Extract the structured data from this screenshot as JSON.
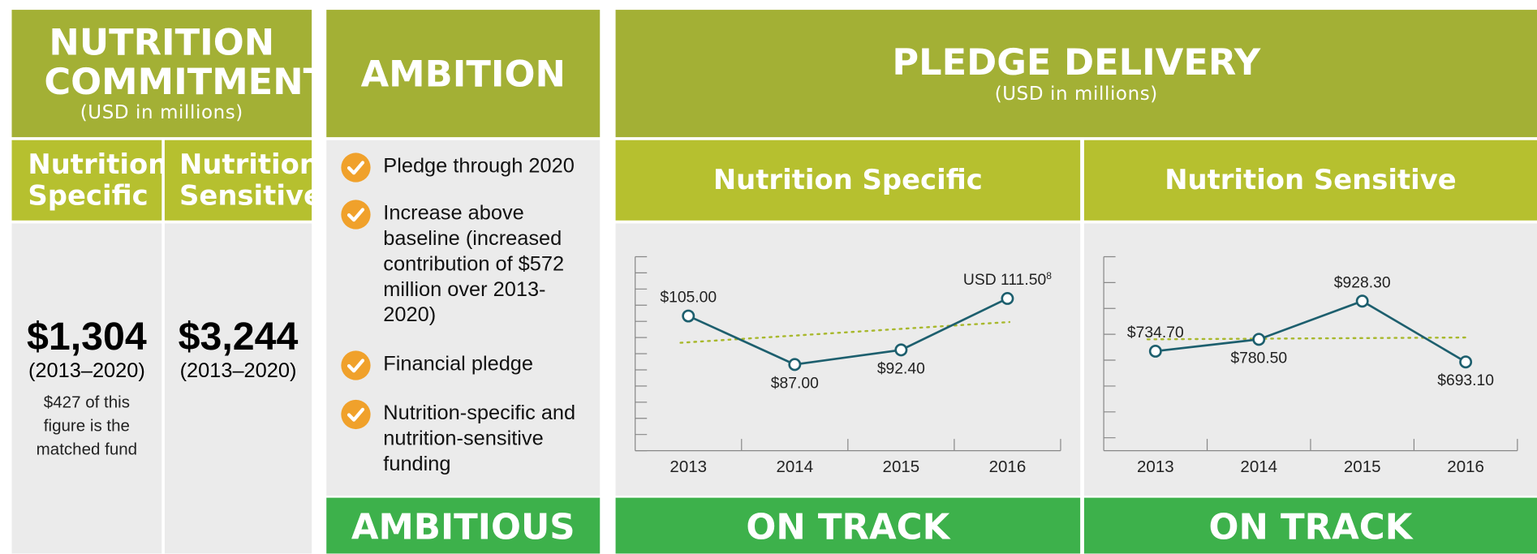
{
  "commitment": {
    "title": "NUTRITION COMMITMENT",
    "subtitle": "(USD in millions)",
    "columns": [
      {
        "heading": "Nutrition Specific",
        "amount": "$1,304",
        "period": "(2013–2020)",
        "note": "$427 of this figure is the matched fund"
      },
      {
        "heading": "Nutrition Sensitive",
        "amount": "$3,244",
        "period": "(2013–2020)"
      }
    ]
  },
  "ambition": {
    "title": "AMBITION",
    "items": [
      "Pledge through 2020",
      "Increase above baseline (increased contribution of $572 million over 2013-2020)",
      "Financial pledge",
      "Nutrition-specific and nutrition-sensitive funding"
    ],
    "status": "AMBITIOUS"
  },
  "delivery": {
    "title": "PLEDGE DELIVERY",
    "subtitle": "(USD in millions)"
  },
  "chart_data": [
    {
      "type": "line",
      "title": "Nutrition Specific",
      "categories": [
        "2013",
        "2014",
        "2015",
        "2016"
      ],
      "values": [
        105,
        87,
        92.4,
        111.5
      ],
      "value_labels": [
        "$105.00",
        "$87.00",
        "$92.40",
        "USD 111.50"
      ],
      "footnote": "8",
      "color": "#1d5f6e",
      "trendline": true,
      "trend_color": "#a8b82c",
      "ylim": [
        55,
        127
      ],
      "yticks": [
        55,
        61,
        67,
        73,
        79,
        85,
        91,
        97,
        103,
        109,
        115,
        121,
        127
      ],
      "status": "ON TRACK"
    },
    {
      "type": "line",
      "title": "Nutrition Sensitive",
      "categories": [
        "2013",
        "2014",
        "2015",
        "2016"
      ],
      "values": [
        734.7,
        780.5,
        928.3,
        693.1
      ],
      "value_labels": [
        "$734.70",
        "$780.50",
        "$928.30",
        "$693.10"
      ],
      "color": "#1d5f6e",
      "trendline": true,
      "trend_color": "#a8b82c",
      "ylim": [
        350,
        1100
      ],
      "yticks": [
        400,
        500,
        600,
        700,
        800,
        900,
        1000,
        1100
      ],
      "status": "ON TRACK"
    }
  ]
}
